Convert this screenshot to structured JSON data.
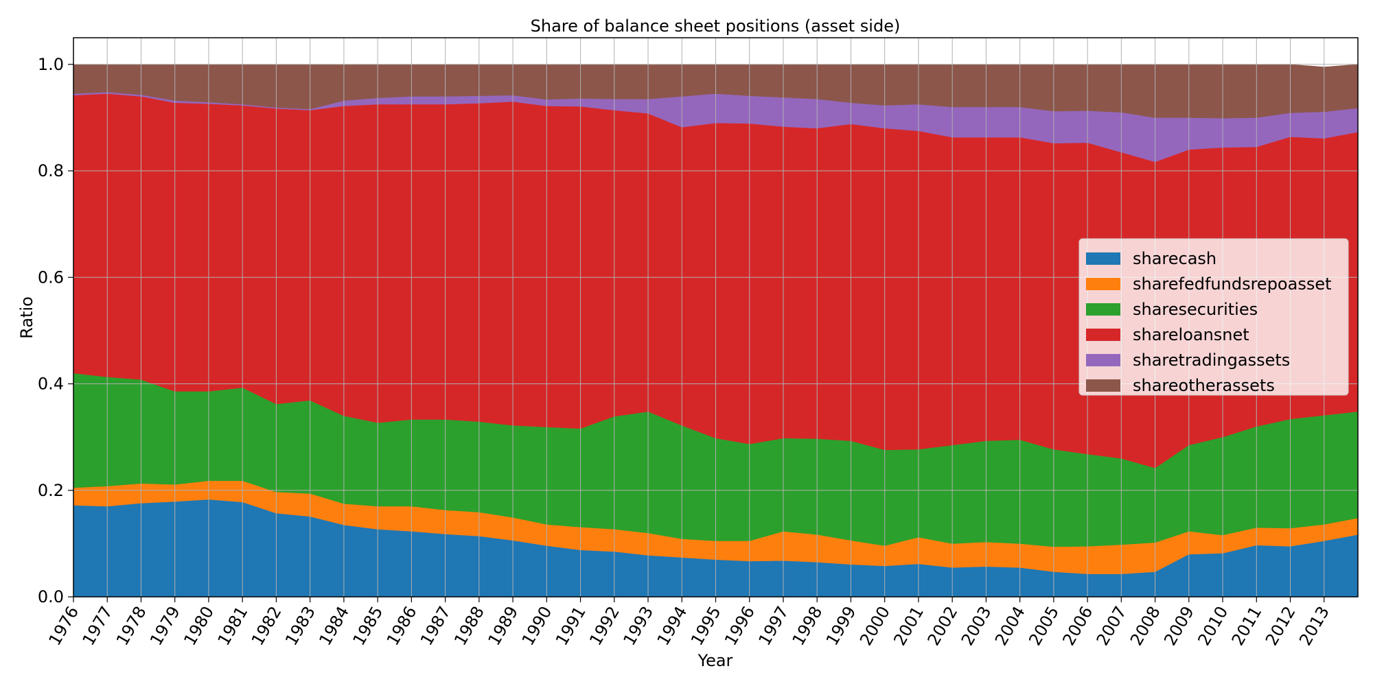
{
  "chart_data": {
    "type": "area",
    "stacked": true,
    "title": "Share of balance sheet positions (asset side)",
    "xlabel": "Year",
    "ylabel": "Ratio",
    "xlim": [
      1976,
      2014.0
    ],
    "ylim": [
      0,
      1.05
    ],
    "yticks": [
      "0.0",
      "0.2",
      "0.4",
      "0.6",
      "0.8",
      "1.0"
    ],
    "xticks": [
      "1976",
      "1977",
      "1978",
      "1979",
      "1980",
      "1981",
      "1982",
      "1983",
      "1984",
      "1985",
      "1986",
      "1987",
      "1988",
      "1989",
      "1990",
      "1991",
      "1992",
      "1993",
      "1994",
      "1995",
      "1996",
      "1997",
      "1998",
      "1999",
      "2000",
      "2001",
      "2002",
      "2003",
      "2004",
      "2005",
      "2006",
      "2007",
      "2008",
      "2009",
      "2010",
      "2011",
      "2012",
      "2013"
    ],
    "grid": true,
    "legend_position": "center-right",
    "series_colors": [
      "#1f77b4",
      "#ff7f0e",
      "#2ca02c",
      "#d62728",
      "#9467bd",
      "#8c564b"
    ],
    "x": [
      1976,
      1977,
      1978,
      1979,
      1980,
      1981,
      1982,
      1983,
      1984,
      1985,
      1986,
      1987,
      1988,
      1989,
      1990,
      1991,
      1992,
      1993,
      1994,
      1995,
      1996,
      1997,
      1998,
      1999,
      2000,
      2001,
      2002,
      2003,
      2004,
      2005,
      2006,
      2007,
      2008,
      2009,
      2010,
      2011,
      2012,
      2013,
      2014
    ],
    "series": [
      {
        "name": "sharecash",
        "values": [
          0.172,
          0.17,
          0.176,
          0.179,
          0.183,
          0.178,
          0.157,
          0.151,
          0.135,
          0.127,
          0.123,
          0.118,
          0.114,
          0.106,
          0.096,
          0.088,
          0.085,
          0.078,
          0.074,
          0.07,
          0.067,
          0.068,
          0.065,
          0.061,
          0.058,
          0.062,
          0.055,
          0.057,
          0.055,
          0.047,
          0.043,
          0.043,
          0.047,
          0.08,
          0.082,
          0.097,
          0.095,
          0.105,
          0.117
        ]
      },
      {
        "name": "sharefedfundsrepoasset",
        "values": [
          0.033,
          0.038,
          0.037,
          0.032,
          0.035,
          0.04,
          0.04,
          0.043,
          0.04,
          0.043,
          0.047,
          0.045,
          0.045,
          0.043,
          0.04,
          0.043,
          0.042,
          0.042,
          0.035,
          0.035,
          0.038,
          0.055,
          0.052,
          0.045,
          0.038,
          0.05,
          0.045,
          0.046,
          0.045,
          0.047,
          0.052,
          0.055,
          0.055,
          0.043,
          0.034,
          0.033,
          0.034,
          0.031,
          0.031
        ]
      },
      {
        "name": "sharesecurities",
        "values": [
          0.215,
          0.205,
          0.195,
          0.175,
          0.168,
          0.175,
          0.165,
          0.175,
          0.165,
          0.157,
          0.163,
          0.17,
          0.17,
          0.173,
          0.183,
          0.185,
          0.212,
          0.228,
          0.213,
          0.193,
          0.182,
          0.175,
          0.18,
          0.187,
          0.18,
          0.165,
          0.185,
          0.19,
          0.195,
          0.183,
          0.173,
          0.162,
          0.14,
          0.162,
          0.184,
          0.19,
          0.205,
          0.205,
          0.2
        ]
      },
      {
        "name": "shareloansnet",
        "values": [
          0.522,
          0.532,
          0.532,
          0.542,
          0.54,
          0.53,
          0.555,
          0.545,
          0.582,
          0.598,
          0.592,
          0.592,
          0.598,
          0.608,
          0.603,
          0.605,
          0.575,
          0.56,
          0.56,
          0.592,
          0.602,
          0.585,
          0.583,
          0.595,
          0.604,
          0.598,
          0.578,
          0.57,
          0.568,
          0.575,
          0.585,
          0.575,
          0.575,
          0.555,
          0.544,
          0.525,
          0.53,
          0.52,
          0.525
        ]
      },
      {
        "name": "sharetradingassets",
        "values": [
          0.003,
          0.003,
          0.003,
          0.004,
          0.003,
          0.002,
          0.002,
          0.002,
          0.01,
          0.012,
          0.015,
          0.015,
          0.014,
          0.012,
          0.012,
          0.015,
          0.021,
          0.027,
          0.058,
          0.055,
          0.052,
          0.055,
          0.055,
          0.04,
          0.043,
          0.05,
          0.057,
          0.057,
          0.057,
          0.06,
          0.06,
          0.075,
          0.083,
          0.06,
          0.055,
          0.055,
          0.045,
          0.05,
          0.045
        ]
      },
      {
        "name": "shareotherassets",
        "values": [
          0.055,
          0.052,
          0.057,
          0.068,
          0.071,
          0.075,
          0.081,
          0.084,
          0.068,
          0.063,
          0.06,
          0.06,
          0.059,
          0.058,
          0.066,
          0.064,
          0.065,
          0.065,
          0.06,
          0.055,
          0.059,
          0.062,
          0.065,
          0.072,
          0.077,
          0.075,
          0.08,
          0.08,
          0.08,
          0.088,
          0.087,
          0.09,
          0.1,
          0.1,
          0.101,
          0.1,
          0.091,
          0.084,
          0.082
        ]
      }
    ]
  }
}
